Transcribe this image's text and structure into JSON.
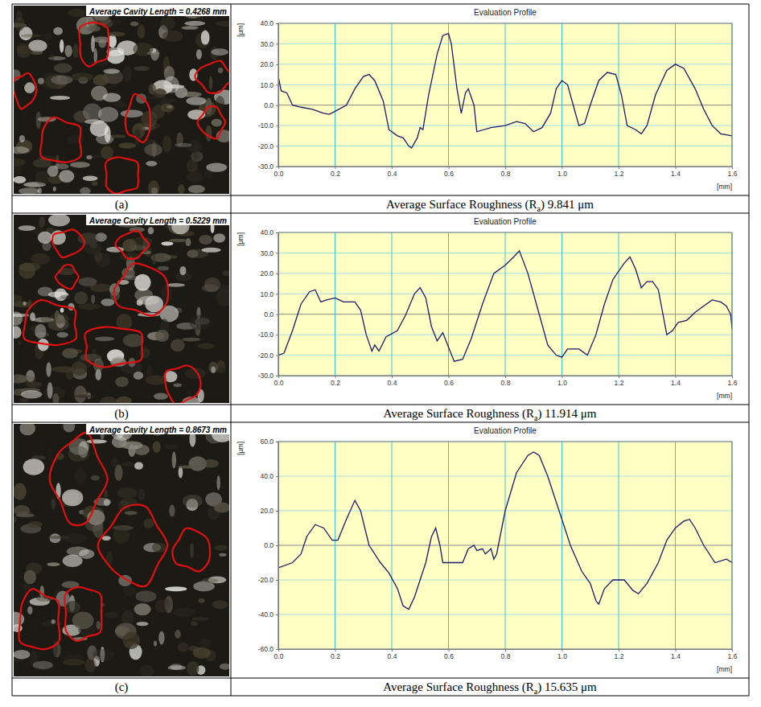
{
  "panels": [
    {
      "label": "(a)",
      "image_text": "Average Cavity Length = 0.4268 mm",
      "caption": {
        "before": "Average Surface Roughness (R",
        "sub": "a",
        "after": ") 9.841 μm"
      }
    },
    {
      "label": "(b)",
      "image_text": "Average Cavity Length = 0.5229 mm",
      "caption": {
        "before": "Average Surface Roughness (R",
        "sub": "a",
        "after": ") 11.914 μm"
      }
    },
    {
      "label": "(c)",
      "image_text": "Average Cavity Length = 0.8673 mm",
      "caption": {
        "before": "Average Surface Roughness (R",
        "sub": "a",
        "after": ") 15.635 μm"
      }
    }
  ],
  "chart_data": [
    {
      "type": "line",
      "title": "Evaluation Profile",
      "x_label": "[mm]",
      "y_label": "[μm]",
      "grid": true,
      "xlim": [
        0,
        1.6
      ],
      "xticks": [
        {
          "value": 0,
          "label": "0.0"
        },
        0.2,
        0.4,
        0.6,
        0.8,
        {
          "value": 1,
          "label": "1.0"
        },
        1.2,
        1.4,
        1.6
      ],
      "ylim": [
        -30,
        40
      ],
      "yticks": [
        {
          "value": 40,
          "label": "40.0"
        },
        {
          "value": 30,
          "label": "30.0"
        },
        {
          "value": 20,
          "label": "20.0"
        },
        {
          "value": 10,
          "label": "10.0"
        },
        {
          "value": 0,
          "label": "0.0"
        },
        {
          "value": -10,
          "label": "-10.0"
        },
        {
          "value": -20,
          "label": "-20.0"
        },
        {
          "value": -30,
          "label": "-30.0"
        }
      ],
      "x": [
        0,
        0.01,
        0.03,
        0.05,
        0.08,
        0.12,
        0.16,
        0.18,
        0.2,
        0.24,
        0.27,
        0.3,
        0.32,
        0.34,
        0.37,
        0.39,
        0.42,
        0.44,
        0.46,
        0.47,
        0.49,
        0.5,
        0.51,
        0.53,
        0.56,
        0.58,
        0.6,
        0.61,
        0.63,
        0.645,
        0.66,
        0.67,
        0.69,
        0.7,
        0.75,
        0.8,
        0.84,
        0.87,
        0.9,
        0.93,
        0.96,
        0.98,
        1.0,
        1.02,
        1.04,
        1.06,
        1.08,
        1.1,
        1.13,
        1.16,
        1.19,
        1.21,
        1.23,
        1.26,
        1.28,
        1.3,
        1.33,
        1.37,
        1.4,
        1.43,
        1.47,
        1.5,
        1.53,
        1.56,
        1.6
      ],
      "series": [
        {
          "color": "#1a1a6e",
          "values": [
            14,
            7,
            6,
            0,
            -1,
            -2,
            -4,
            -4.5,
            -3,
            0,
            8,
            14,
            15,
            12,
            2,
            -12,
            -15,
            -16,
            -20,
            -21,
            -16,
            -11,
            -12,
            5,
            25,
            34,
            35,
            30,
            8,
            -4,
            6,
            8,
            0,
            -13,
            -11,
            -10,
            -8,
            -9,
            -13,
            -11,
            -4,
            8,
            12,
            10,
            0,
            -10,
            -9,
            0,
            12,
            16,
            15,
            5,
            -10,
            -12,
            -14,
            -10,
            5,
            17,
            20,
            18,
            8,
            -2,
            -10,
            -14,
            -15
          ]
        }
      ]
    },
    {
      "type": "line",
      "title": "Evaluation Profile",
      "x_label": "[mm]",
      "y_label": "[μm]",
      "grid": true,
      "xlim": [
        0,
        1.6
      ],
      "xticks": [
        {
          "value": 0,
          "label": "0.0"
        },
        0.2,
        0.4,
        0.6,
        0.8,
        {
          "value": 1,
          "label": "1.0"
        },
        1.2,
        1.4,
        1.6
      ],
      "ylim": [
        -30,
        40
      ],
      "yticks": [
        {
          "value": 40,
          "label": "40.0"
        },
        {
          "value": 30,
          "label": "30.0"
        },
        {
          "value": 20,
          "label": "20.0"
        },
        {
          "value": 10,
          "label": "10.0"
        },
        {
          "value": 0,
          "label": "0.0"
        },
        {
          "value": -10,
          "label": "-10.0"
        },
        {
          "value": -20,
          "label": "-20.0"
        },
        {
          "value": -30,
          "label": "-30.0"
        }
      ],
      "x": [
        0,
        0.02,
        0.05,
        0.08,
        0.11,
        0.13,
        0.15,
        0.17,
        0.2,
        0.23,
        0.27,
        0.29,
        0.31,
        0.33,
        0.34,
        0.355,
        0.38,
        0.42,
        0.45,
        0.48,
        0.5,
        0.52,
        0.54,
        0.56,
        0.58,
        0.6,
        0.62,
        0.65,
        0.68,
        0.72,
        0.76,
        0.8,
        0.83,
        0.85,
        0.88,
        0.92,
        0.95,
        0.98,
        1.0,
        1.02,
        1.06,
        1.09,
        1.12,
        1.15,
        1.18,
        1.22,
        1.24,
        1.26,
        1.28,
        1.3,
        1.32,
        1.34,
        1.37,
        1.39,
        1.41,
        1.44,
        1.47,
        1.5,
        1.53,
        1.56,
        1.58,
        1.595,
        1.6
      ],
      "series": [
        {
          "color": "#1a1a6e",
          "values": [
            -20,
            -19,
            -8,
            5,
            11,
            12,
            6,
            7,
            8,
            6,
            6,
            2,
            -10,
            -18,
            -15,
            -18,
            -11,
            -8,
            0,
            10,
            13,
            8,
            -6,
            -13,
            -9,
            -16,
            -23,
            -22,
            -12,
            5,
            20,
            24,
            28,
            31,
            20,
            0,
            -15,
            -20,
            -21,
            -17,
            -17,
            -20,
            -10,
            5,
            17,
            25,
            28,
            22,
            13,
            16,
            16,
            12,
            -10,
            -8,
            -4,
            -3,
            1,
            4,
            7,
            6,
            4,
            0,
            -7
          ]
        }
      ]
    },
    {
      "type": "line",
      "title": "Evaluation Profile",
      "x_label": "[mm]",
      "y_label": "[μm]",
      "grid": true,
      "xlim": [
        0,
        1.6
      ],
      "xticks": [
        {
          "value": 0,
          "label": "0.0"
        },
        0.2,
        0.4,
        0.6,
        0.8,
        {
          "value": 1,
          "label": "1.0"
        },
        1.2,
        1.4,
        1.6
      ],
      "ylim": [
        -60,
        60
      ],
      "yticks": [
        {
          "value": 60,
          "label": "60.0"
        },
        {
          "value": 40,
          "label": "40.0"
        },
        {
          "value": 20,
          "label": "20.0"
        },
        {
          "value": 0,
          "label": "0.0"
        },
        {
          "value": -20,
          "label": "-20.0"
        },
        {
          "value": -40,
          "label": "-40.0"
        },
        {
          "value": -60,
          "label": "-60.0"
        }
      ],
      "x": [
        0,
        0.05,
        0.08,
        0.1,
        0.13,
        0.16,
        0.19,
        0.21,
        0.24,
        0.27,
        0.29,
        0.32,
        0.36,
        0.39,
        0.42,
        0.44,
        0.46,
        0.48,
        0.5,
        0.52,
        0.54,
        0.555,
        0.57,
        0.58,
        0.63,
        0.65,
        0.67,
        0.69,
        0.7,
        0.72,
        0.73,
        0.75,
        0.76,
        0.77,
        0.8,
        0.84,
        0.88,
        0.9,
        0.92,
        0.95,
        0.99,
        1.03,
        1.07,
        1.1,
        1.12,
        1.13,
        1.15,
        1.18,
        1.22,
        1.25,
        1.27,
        1.3,
        1.34,
        1.37,
        1.4,
        1.43,
        1.45,
        1.47,
        1.5,
        1.54,
        1.58,
        1.6
      ],
      "series": [
        {
          "color": "#1a1a6e",
          "values": [
            -13,
            -10,
            -5,
            5,
            12,
            10,
            3,
            3,
            15,
            26,
            20,
            0,
            -10,
            -16,
            -25,
            -35,
            -37,
            -30,
            -20,
            -10,
            5,
            10,
            0,
            -10,
            -10,
            -10,
            -2,
            0,
            -3,
            -2,
            -5,
            -2,
            -8,
            -5,
            20,
            42,
            52,
            54,
            52,
            40,
            20,
            0,
            -15,
            -22,
            -32,
            -34,
            -25,
            -20,
            -20,
            -26,
            -28,
            -22,
            -10,
            3,
            10,
            14,
            15,
            10,
            0,
            -10,
            -8,
            -10
          ]
        }
      ]
    }
  ]
}
